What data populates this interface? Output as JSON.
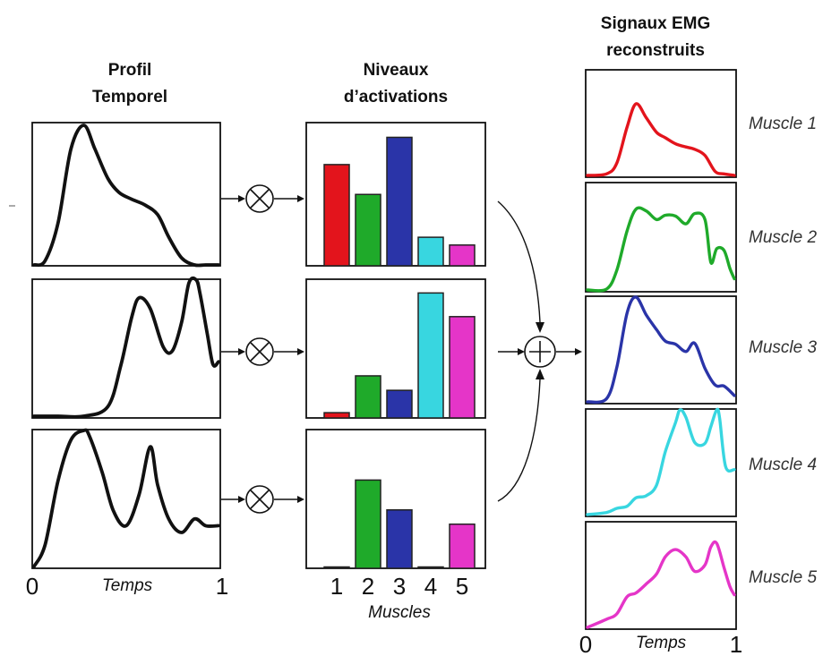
{
  "headers": {
    "temporal_profile": [
      "Profil",
      "Temporel"
    ],
    "activation_levels": [
      "Niveaux",
      "d’activations"
    ],
    "reconstructed_emg": [
      "Signaux EMG",
      "reconstruits"
    ]
  },
  "time_axis": {
    "start": "0",
    "end": "1",
    "label": "Temps"
  },
  "muscle_axis": {
    "ticks": [
      "1",
      "2",
      "3",
      "4",
      "5"
    ],
    "label": "Muscles"
  },
  "operators": {
    "multiply": "⊗",
    "sum": "⊕"
  },
  "muscle_colors": [
    "#e3141c",
    "#1faa2a",
    "#2a34a8",
    "#38d6e0",
    "#e535c8"
  ],
  "muscle_labels": [
    "Muscle 1",
    "Muscle 2",
    "Muscle 3",
    "Muscle 4",
    "Muscle 5"
  ],
  "chart_data": {
    "activation_levels": [
      {
        "type": "bar",
        "categories": [
          "1",
          "2",
          "3",
          "4",
          "5"
        ],
        "values": [
          0.78,
          0.55,
          0.99,
          0.22,
          0.16
        ],
        "ylim": [
          0,
          1
        ]
      },
      {
        "type": "bar",
        "categories": [
          "1",
          "2",
          "3",
          "4",
          "5"
        ],
        "values": [
          0.04,
          0.32,
          0.21,
          0.95,
          0.77
        ],
        "ylim": [
          0,
          1
        ]
      },
      {
        "type": "bar",
        "categories": [
          "1",
          "2",
          "3",
          "4",
          "5"
        ],
        "values": [
          0.01,
          0.68,
          0.45,
          0.01,
          0.34
        ],
        "ylim": [
          0,
          1
        ]
      }
    ],
    "temporal_profiles": [
      {
        "type": "line",
        "x": [
          0,
          0.06,
          0.13,
          0.2,
          0.27,
          0.33,
          0.4,
          0.46,
          0.53,
          0.6,
          0.67,
          0.73,
          0.8,
          0.87,
          0.93,
          1.0
        ],
        "y": [
          0.0,
          0.03,
          0.3,
          0.83,
          1.0,
          0.83,
          0.62,
          0.52,
          0.47,
          0.43,
          0.36,
          0.2,
          0.05,
          0.0,
          0.0,
          0.0
        ]
      },
      {
        "type": "line",
        "x": [
          0,
          0.13,
          0.27,
          0.4,
          0.47,
          0.53,
          0.57,
          0.63,
          0.7,
          0.75,
          0.8,
          0.84,
          0.88,
          0.9,
          0.94,
          0.97,
          1.0
        ],
        "y": [
          0.0,
          0.0,
          0.0,
          0.07,
          0.37,
          0.73,
          0.87,
          0.79,
          0.51,
          0.48,
          0.69,
          0.98,
          1.0,
          0.9,
          0.6,
          0.38,
          0.4
        ]
      },
      {
        "type": "line",
        "x": [
          0,
          0.06,
          0.13,
          0.2,
          0.27,
          0.3,
          0.37,
          0.43,
          0.5,
          0.57,
          0.63,
          0.67,
          0.73,
          0.8,
          0.87,
          0.93,
          1.0
        ],
        "y": [
          0.0,
          0.16,
          0.63,
          0.93,
          1.0,
          0.96,
          0.69,
          0.41,
          0.3,
          0.53,
          0.88,
          0.6,
          0.35,
          0.25,
          0.35,
          0.3,
          0.3
        ]
      }
    ],
    "reconstructed_emg": [
      {
        "type": "line",
        "name": "Muscle 1",
        "x": [
          0,
          0.13,
          0.2,
          0.27,
          0.33,
          0.4,
          0.47,
          0.53,
          0.6,
          0.67,
          0.73,
          0.8,
          0.87,
          0.93,
          1.0
        ],
        "y": [
          0.0,
          0.02,
          0.16,
          0.63,
          0.93,
          0.75,
          0.56,
          0.49,
          0.41,
          0.37,
          0.34,
          0.26,
          0.05,
          0.02,
          0.0
        ]
      },
      {
        "type": "line",
        "name": "Muscle 2",
        "x": [
          0,
          0.13,
          0.2,
          0.27,
          0.33,
          0.4,
          0.47,
          0.53,
          0.6,
          0.67,
          0.73,
          0.8,
          0.84,
          0.88,
          0.93,
          0.97,
          1.0
        ],
        "y": [
          0.0,
          0.01,
          0.23,
          0.69,
          0.94,
          0.92,
          0.82,
          0.87,
          0.86,
          0.77,
          0.89,
          0.82,
          0.32,
          0.48,
          0.46,
          0.25,
          0.13
        ]
      },
      {
        "type": "line",
        "name": "Muscle 3",
        "x": [
          0,
          0.13,
          0.2,
          0.27,
          0.33,
          0.4,
          0.47,
          0.53,
          0.6,
          0.67,
          0.73,
          0.8,
          0.87,
          0.93,
          1.0
        ],
        "y": [
          0.0,
          0.03,
          0.33,
          0.85,
          1.0,
          0.83,
          0.69,
          0.58,
          0.55,
          0.48,
          0.56,
          0.32,
          0.16,
          0.15,
          0.06
        ]
      },
      {
        "type": "line",
        "name": "Muscle 4",
        "x": [
          0,
          0.13,
          0.2,
          0.27,
          0.33,
          0.4,
          0.47,
          0.53,
          0.6,
          0.63,
          0.67,
          0.73,
          0.8,
          0.84,
          0.88,
          0.9,
          0.94,
          1.0
        ],
        "y": [
          0.0,
          0.02,
          0.06,
          0.08,
          0.16,
          0.18,
          0.28,
          0.6,
          0.88,
          1.0,
          0.93,
          0.69,
          0.68,
          0.84,
          1.0,
          0.92,
          0.46,
          0.43
        ]
      },
      {
        "type": "line",
        "name": "Muscle 5",
        "x": [
          0,
          0.13,
          0.2,
          0.27,
          0.33,
          0.4,
          0.47,
          0.53,
          0.6,
          0.67,
          0.73,
          0.8,
          0.84,
          0.88,
          0.93,
          0.97,
          1.0
        ],
        "y": [
          0.0,
          0.09,
          0.15,
          0.34,
          0.38,
          0.48,
          0.59,
          0.78,
          0.86,
          0.78,
          0.62,
          0.69,
          0.89,
          0.93,
          0.66,
          0.45,
          0.36
        ]
      }
    ]
  }
}
